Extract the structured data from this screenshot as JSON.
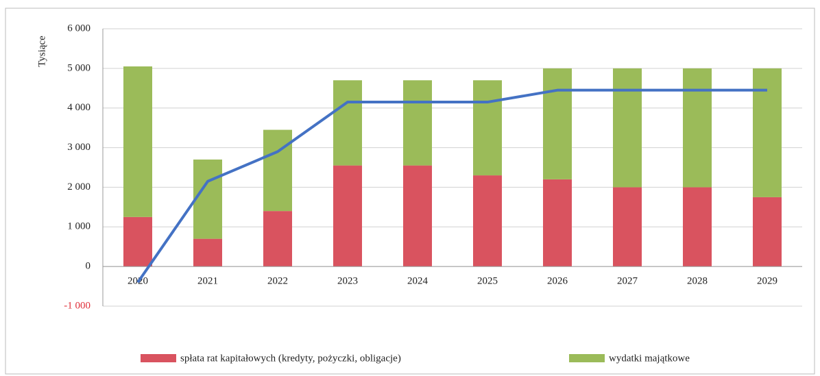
{
  "chart_data": {
    "type": "bar",
    "stacked": true,
    "y_label": "Tysiące",
    "categories": [
      "2020",
      "2021",
      "2022",
      "2023",
      "2024",
      "2025",
      "2026",
      "2027",
      "2028",
      "2029"
    ],
    "series": [
      {
        "name": "spłata rat kapitałowych (kredyty, pożyczki, obligacje)",
        "color": "#d9535f",
        "values": [
          1250,
          700,
          1400,
          2550,
          2550,
          2300,
          2200,
          2000,
          2000,
          1750
        ]
      },
      {
        "name": "wydatki majątkowe",
        "color": "#9bbb59",
        "values": [
          3800,
          2000,
          2050,
          2150,
          2150,
          2400,
          2800,
          3000,
          3000,
          3250
        ]
      },
      {
        "type": "line",
        "color": "#4472c4",
        "values": [
          -400,
          2150,
          2900,
          4150,
          4150,
          4150,
          4450,
          4450,
          4450,
          4450
        ]
      }
    ],
    "ylim": [
      -1000,
      6000
    ],
    "yticks": [
      {
        "value": -1000,
        "label": "-1 000"
      },
      0,
      {
        "value": 1000,
        "label": "1 000"
      },
      {
        "value": 2000,
        "label": "2 000"
      },
      {
        "value": 3000,
        "label": "3 000"
      },
      {
        "value": 4000,
        "label": "4 000"
      },
      {
        "value": 5000,
        "label": "5 000"
      },
      {
        "value": 6000,
        "label": "6 000"
      }
    ],
    "grid": true,
    "legend": "bottom"
  }
}
